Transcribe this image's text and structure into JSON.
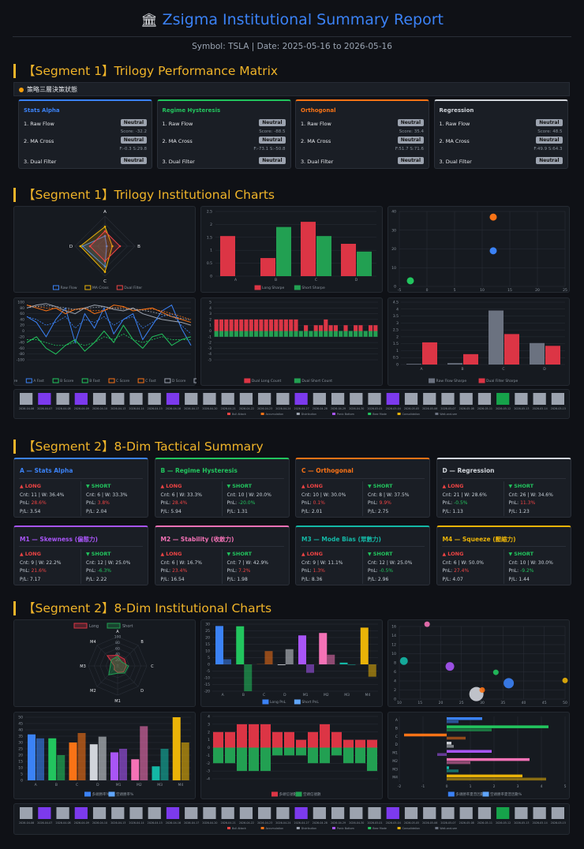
{
  "header": {
    "icon": "bank-icon",
    "title": "Zsigma Institutional Summary Report",
    "subtitle": "Symbol: TSLA | Date: 2025-05-16 to 2026-05-16"
  },
  "sections": {
    "s1_matrix": "【Segment 1】Trilogy Performance Matrix",
    "s1_charts": "【Segment 1】Trilogy Institutional Charts",
    "s2_summary": "【Segment 2】8-Dim Tactical Summary",
    "s2_charts": "【Segment 2】8-Dim Institutional Charts"
  },
  "matrix": {
    "header_label": "策略三層決策狀態",
    "cards": [
      {
        "title": "Stats Alpha",
        "color": "#3b82f6",
        "rows": [
          {
            "label": "1. Raw Flow",
            "status": "Neutral",
            "note": "Score: -32.2"
          },
          {
            "label": "2. MA Cross",
            "status": "Neutral",
            "note": "F:-0.3 S:29.8"
          },
          {
            "label": "3. Dual Filter",
            "status": "Neutral",
            "note": ""
          }
        ]
      },
      {
        "title": "Regime Hysteresis",
        "color": "#22c55e",
        "rows": [
          {
            "label": "1. Raw Flow",
            "status": "Neutral",
            "note": "Score: -88.5"
          },
          {
            "label": "2. MA Cross",
            "status": "Neutral",
            "note": "F:-73.1 S:-50.8"
          },
          {
            "label": "3. Dual Filter",
            "status": "Neutral",
            "note": ""
          }
        ]
      },
      {
        "title": "Orthogonal",
        "color": "#f97316",
        "rows": [
          {
            "label": "1. Raw Flow",
            "status": "Neutral",
            "note": "Score: 35.4"
          },
          {
            "label": "2. MA Cross",
            "status": "Neutral",
            "note": "F:51.7 S:71.6"
          },
          {
            "label": "3. Dual Filter",
            "status": "Neutral",
            "note": ""
          }
        ]
      },
      {
        "title": "Regression",
        "color": "#d1d5db",
        "rows": [
          {
            "label": "1. Raw Flow",
            "status": "Neutral",
            "note": "Score: 48.5"
          },
          {
            "label": "2. MA Cross",
            "status": "Neutral",
            "note": "F:49.9 S:64.3"
          },
          {
            "label": "3. Dual Filter",
            "status": "Neutral",
            "note": ""
          }
        ]
      }
    ]
  },
  "tactical": {
    "long_label": "LONG",
    "short_label": "SHORT",
    "cards": [
      {
        "title": "A — Stats Alpha",
        "color": "#3b82f6",
        "long": {
          "cnt": "Cnt: 11 | W: 36.4%",
          "pnl": "28.6%",
          "pf": "P/L: 3.54"
        },
        "short": {
          "cnt": "Cnt: 6 | W: 33.3%",
          "pnl": "3.8%",
          "pf": "P/L: 2.04"
        }
      },
      {
        "title": "B — Regime Hysteresis",
        "color": "#22c55e",
        "long": {
          "cnt": "Cnt: 6 | W: 33.3%",
          "pnl": "28.4%",
          "pf": "P/L: 5.94"
        },
        "short": {
          "cnt": "Cnt: 10 | W: 20.0%",
          "pnl": "-20.0%",
          "pf": "P/L: 1.31"
        }
      },
      {
        "title": "C — Orthogonal",
        "color": "#f97316",
        "long": {
          "cnt": "Cnt: 10 | W: 30.0%",
          "pnl": "0.1%",
          "pf": "P/L: 2.01"
        },
        "short": {
          "cnt": "Cnt: 8 | W: 37.5%",
          "pnl": "9.9%",
          "pf": "P/L: 2.75"
        }
      },
      {
        "title": "D — Regression",
        "color": "#d1d5db",
        "long": {
          "cnt": "Cnt: 21 | W: 28.6%",
          "pnl": "-0.5%",
          "pf": "P/L: 1.13"
        },
        "short": {
          "cnt": "Cnt: 26 | W: 34.6%",
          "pnl": "11.3%",
          "pf": "P/L: 1.23"
        }
      },
      {
        "title": "M1 — Skewness (偏態力)",
        "color": "#a855f7",
        "long": {
          "cnt": "Cnt: 9 | W: 22.2%",
          "pnl": "21.6%",
          "pf": "P/L: 7.17"
        },
        "short": {
          "cnt": "Cnt: 12 | W: 25.0%",
          "pnl": "-6.3%",
          "pf": "P/L: 2.22"
        }
      },
      {
        "title": "M2 — Stability (收斂力)",
        "color": "#f472b6",
        "long": {
          "cnt": "Cnt: 6 | W: 16.7%",
          "pnl": "23.4%",
          "pf": "P/L: 16.54"
        },
        "short": {
          "cnt": "Cnt: 7 | W: 42.9%",
          "pnl": "7.2%",
          "pf": "P/L: 1.98"
        }
      },
      {
        "title": "M3 — Mode Bias (眾數力)",
        "color": "#14b8a6",
        "long": {
          "cnt": "Cnt: 9 | W: 11.1%",
          "pnl": "1.3%",
          "pf": "P/L: 8.36"
        },
        "short": {
          "cnt": "Cnt: 12 | W: 25.0%",
          "pnl": "-0.5%",
          "pf": "P/L: 2.96"
        }
      },
      {
        "title": "M4 — Squeeze (壓縮力)",
        "color": "#eab308",
        "long": {
          "cnt": "Cnt: 6 | W: 50.0%",
          "pnl": "27.4%",
          "pf": "P/L: 4.07"
        },
        "short": {
          "cnt": "Cnt: 10 | W: 30.0%",
          "pnl": "-9.2%",
          "pf": "P/L: 1.44"
        }
      }
    ]
  },
  "colors": {
    "long": "#ef4444",
    "short": "#22c55e",
    "bg": "#0f1116",
    "panel": "#161a20",
    "accent": "#f0b429"
  },
  "chart_data": [
    {
      "type": "radar",
      "id": "s1-radar",
      "axes": [
        "A",
        "B",
        "C",
        "D"
      ],
      "series": [
        {
          "name": "Raw Flow",
          "values": [
            -32.2,
            -88.5,
            35.4,
            48.5
          ]
        },
        {
          "name": "MA Cross",
          "values": [
            29.8,
            -50.8,
            71.6,
            64.3
          ]
        },
        {
          "name": "Dual Filter",
          "values": [
            0,
            0,
            0,
            0
          ]
        }
      ],
      "legend": "bottom"
    },
    {
      "type": "bar",
      "id": "s1-sharpe",
      "categories": [
        "A",
        "B",
        "C",
        "D"
      ],
      "series": [
        {
          "name": "Long Sharpe",
          "values": [
            1.55,
            0.7,
            2.1,
            1.25
          ]
        },
        {
          "name": "Short Sharpe",
          "values": [
            0,
            1.9,
            1.55,
            0.95
          ]
        }
      ],
      "ylim": [
        0,
        2.5
      ],
      "yticks": [
        "0",
        "0.5",
        "1",
        "1.5",
        "2",
        "2.5"
      ],
      "legend": "bottom"
    },
    {
      "type": "scatter",
      "id": "s1-scatter",
      "xticks": [
        "-5",
        "0",
        "5",
        "10",
        "15",
        "20",
        "25"
      ],
      "yticks": [
        "0",
        "10",
        "20",
        "30",
        "40"
      ],
      "points": [
        {
          "x": -3,
          "y": 3,
          "c": "#22c55e"
        },
        {
          "x": 12,
          "y": 37,
          "c": "#f97316"
        },
        {
          "x": 12,
          "y": 19,
          "c": "#3b82f6"
        },
        {
          "x": 27,
          "y": 17,
          "c": "#d1d5db"
        }
      ]
    },
    {
      "type": "line",
      "id": "s1-score",
      "yticks": [
        "-100",
        "-80",
        "-60",
        "-40",
        "-20",
        "0",
        "20",
        "40",
        "60",
        "80",
        "100"
      ],
      "series": [
        {
          "name": "A Score"
        },
        {
          "name": "A Fast"
        },
        {
          "name": "B Score"
        },
        {
          "name": "B Fast"
        },
        {
          "name": "C Score"
        },
        {
          "name": "C Fast"
        },
        {
          "name": "D Score"
        },
        {
          "name": "D Fast"
        }
      ],
      "legend": "bottom"
    },
    {
      "type": "bar",
      "id": "s1-dual",
      "yticks": [
        "-5",
        "-4",
        "-3",
        "-2",
        "-1",
        "0",
        "1",
        "2",
        "3",
        "4",
        "5"
      ],
      "series": [
        {
          "name": "Dual Long Count"
        },
        {
          "name": "Dual Short Count"
        }
      ],
      "legend": "bottom"
    },
    {
      "type": "bar",
      "id": "s1-rawdual",
      "categories": [
        "A",
        "B",
        "C",
        "D"
      ],
      "series": [
        {
          "name": "Raw Flow Sharpe",
          "values": [
            0.05,
            0.1,
            3.9,
            1.55
          ]
        },
        {
          "name": "Dual Filter Sharpe",
          "values": [
            1.6,
            0.75,
            2.2,
            1.35
          ]
        }
      ],
      "ylim": [
        0,
        4.5
      ],
      "yticks": [
        "0",
        "0.5",
        "1",
        "1.5",
        "2",
        "2.5",
        "3",
        "3.5",
        "4",
        "4.5"
      ],
      "legend": "bottom"
    },
    {
      "type": "heatmap",
      "id": "s1-timeline",
      "dates": [
        "2026-04-06",
        "2026-04-07",
        "2026-04-08",
        "2026-04-09",
        "2026-04-10",
        "2026-04-13",
        "2026-04-14",
        "2026-04-15",
        "2026-04-16",
        "2026-04-17",
        "2026-04-20",
        "2026-04-21",
        "2026-04-22",
        "2026-04-23",
        "2026-04-24",
        "2026-04-27",
        "2026-04-28",
        "2026-04-29",
        "2026-04-30",
        "2026-05-01",
        "2026-05-04",
        "2026-05-05",
        "2026-05-06",
        "2026-05-07",
        "2026-05-08",
        "2026-05-11",
        "2026-05-12",
        "2026-05-13",
        "2026-05-14",
        "2026-05-15"
      ],
      "states": [
        "Sideways",
        "Panic Bottom",
        "Sideways",
        "Panic Bottom",
        "Sideways",
        "Sideways",
        "Sideways",
        "Sideways",
        "Panic Bottom",
        "Sideways",
        "Sideways",
        "Sideways",
        "Sideways",
        "Sideways",
        "Sideways",
        "Panic Bottom",
        "Sideways",
        "Sideways",
        "Sideways",
        "Sideways",
        "Panic Bottom",
        "Sideways",
        "Sideways",
        "Sideways",
        "Sideways",
        "Sideways",
        "Bear Mode",
        "Sideways",
        "Sideways",
        "Sideways"
      ],
      "legend_items": [
        "Bull Attack",
        "Accumulation",
        "Distribution",
        "Panic Bottom",
        "Bear Mode",
        "Consolidation",
        "Wait-and-see"
      ],
      "legend_colors": [
        "#ef4444",
        "#f97316",
        "#9ca3af",
        "#a855f7",
        "#22c55e",
        "#eab308",
        "#6b7280"
      ]
    },
    {
      "type": "radar",
      "id": "s2-radar",
      "axes": [
        "A",
        "B",
        "C",
        "D",
        "M1",
        "M2",
        "M3",
        "M4"
      ],
      "series": [
        {
          "name": "Long",
          "values": [
            36.4,
            33.3,
            30.0,
            28.6,
            22.2,
            16.7,
            11.1,
            50.0
          ]
        },
        {
          "name": "Short",
          "values": [
            33.3,
            20.0,
            37.5,
            34.6,
            25.0,
            42.9,
            25.0,
            30.0
          ]
        }
      ],
      "rticks": [
        "0",
        "20",
        "40",
        "60",
        "80",
        "100"
      ],
      "legend": "top"
    },
    {
      "type": "bar",
      "id": "s2-pnl",
      "categories": [
        "A",
        "B",
        "C",
        "D",
        "M1",
        "M2",
        "M3",
        "M4"
      ],
      "series": [
        {
          "name": "Long PnL",
          "values": [
            28.6,
            28.4,
            0.1,
            -0.5,
            21.6,
            23.4,
            1.3,
            27.4
          ]
        },
        {
          "name": "Short PnL",
          "values": [
            3.8,
            -20.0,
            9.9,
            11.3,
            -6.3,
            7.2,
            -0.5,
            -9.2
          ]
        }
      ],
      "yticks": [
        "-20",
        "-15",
        "-10",
        "-5",
        "0",
        "5",
        "10",
        "15",
        "20",
        "25",
        "30"
      ],
      "legend": "bottom"
    },
    {
      "type": "scatter",
      "id": "s2-scatter",
      "xticks": [
        "10",
        "15",
        "20",
        "25",
        "30",
        "35",
        "40",
        "45",
        "50"
      ],
      "yticks": [
        "0",
        "2",
        "4",
        "6",
        "8",
        "10",
        "12",
        "14",
        "16"
      ],
      "points": [
        {
          "x": 11.1,
          "y": 8.4,
          "c": "#14b8a6"
        },
        {
          "x": 16.7,
          "y": 16.5,
          "c": "#f472b6"
        },
        {
          "x": 22.2,
          "y": 7.2,
          "c": "#a855f7"
        },
        {
          "x": 28.6,
          "y": 1.1,
          "c": "#d1d5db"
        },
        {
          "x": 30.0,
          "y": 2.0,
          "c": "#f97316"
        },
        {
          "x": 33.3,
          "y": 5.9,
          "c": "#22c55e"
        },
        {
          "x": 36.4,
          "y": 3.5,
          "c": "#3b82f6"
        },
        {
          "x": 50.0,
          "y": 4.1,
          "c": "#eab308"
        }
      ]
    },
    {
      "type": "bar",
      "id": "s2-winrate",
      "categories": [
        "A",
        "B",
        "C",
        "D",
        "M1",
        "M2",
        "M3",
        "M4"
      ],
      "series": [
        {
          "name": "多頭勝率%",
          "values": [
            36.4,
            33.3,
            30.0,
            28.6,
            22.2,
            16.7,
            11.1,
            50.0
          ]
        },
        {
          "name": "空頭勝率%",
          "values": [
            33.3,
            20.0,
            37.5,
            34.6,
            25.0,
            42.9,
            25.0,
            30.0
          ]
        }
      ],
      "yticks": [
        "0",
        "5",
        "10",
        "15",
        "20",
        "25",
        "30",
        "35",
        "40",
        "45",
        "50"
      ],
      "legend": "bottom"
    },
    {
      "type": "bar",
      "id": "s2-signal",
      "yticks": [
        "-4",
        "-3",
        "-2",
        "-1",
        "0",
        "1",
        "2",
        "3",
        "4"
      ],
      "series": [
        {
          "name": "多頭信號數"
        },
        {
          "name": "空頭信號數"
        }
      ],
      "legend": "bottom"
    },
    {
      "type": "bar",
      "id": "s2-hbar",
      "categories": [
        "A",
        "B",
        "C",
        "D",
        "M1",
        "M2",
        "M3",
        "M4"
      ],
      "series": [
        {
          "name": "多頭勝率夏普因數%",
          "values": [
            1.5,
            4.3,
            -1.8,
            0.2,
            1.9,
            3.5,
            0.1,
            3.2
          ]
        },
        {
          "name": "空頭勝率夏普因數%",
          "values": [
            0.5,
            1.9,
            0.8,
            0.3,
            -0.4,
            1.0,
            0.5,
            4.2
          ]
        }
      ],
      "xticks": [
        "-2",
        "-1",
        "0",
        "1",
        "2",
        "3",
        "4",
        "5"
      ],
      "legend": "bottom"
    }
  ]
}
